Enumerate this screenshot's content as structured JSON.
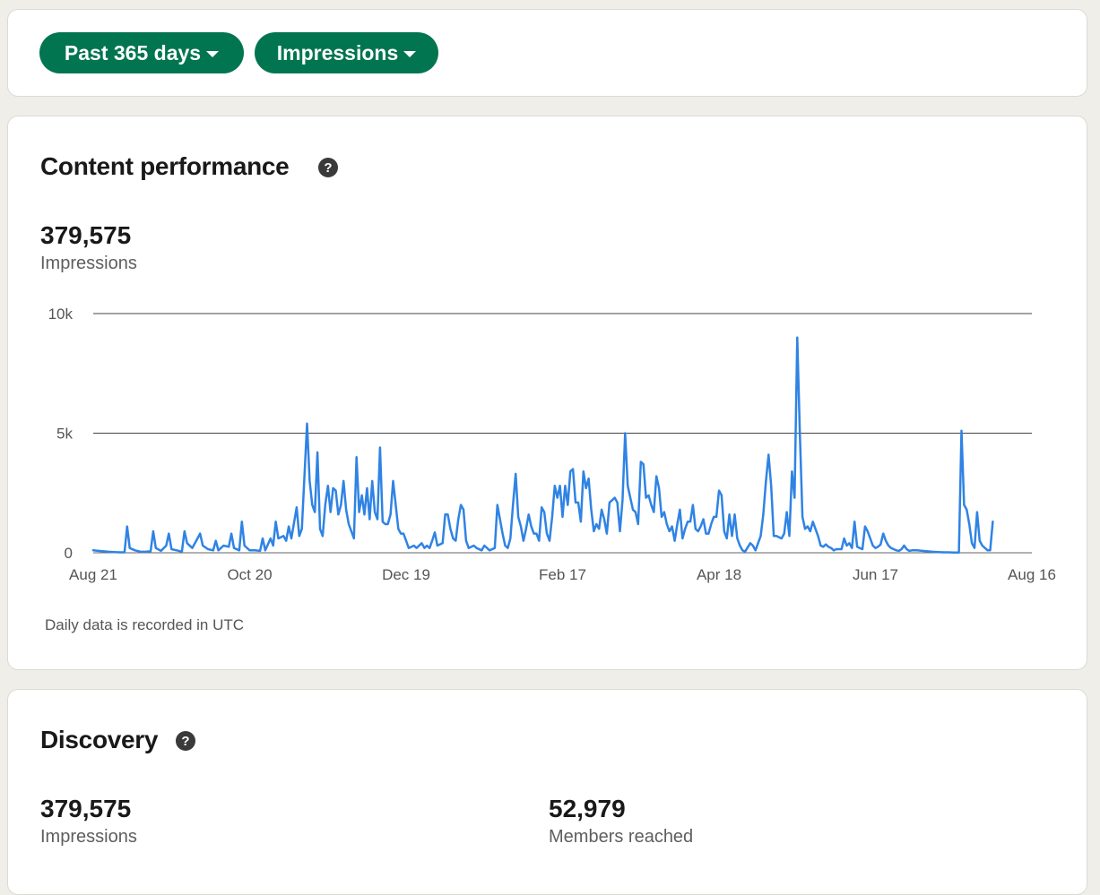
{
  "filters": {
    "range_label": "Past 365 days",
    "metric_label": "Impressions"
  },
  "performance": {
    "title": "Content performance",
    "total": "379,575",
    "total_label": "Impressions",
    "note": "Daily data is recorded in UTC"
  },
  "discovery": {
    "title": "Discovery",
    "impressions": "379,575",
    "impressions_label": "Impressions",
    "members": "52,979",
    "members_label": "Members reached"
  },
  "colors": {
    "accent": "#01754f",
    "line": "#2f83e4",
    "background": "#f0eee9"
  },
  "icons": {
    "help": "question-circle-icon",
    "dropdown": "caret-down-icon"
  },
  "chart_data": {
    "type": "line",
    "title": "",
    "xlabel": "",
    "ylabel": "",
    "ylim": [
      0,
      10000
    ],
    "yticks": [
      {
        "label": "0",
        "value": 0
      },
      {
        "label": "5k",
        "value": 5000
      },
      {
        "label": "10k",
        "value": 10000
      }
    ],
    "xticks": [
      {
        "label": "Aug 21",
        "day": 0
      },
      {
        "label": "Oct 20",
        "day": 60
      },
      {
        "label": "Dec 19",
        "day": 120
      },
      {
        "label": "Feb 17",
        "day": 180
      },
      {
        "label": "Apr 18",
        "day": 240
      },
      {
        "label": "Jun 17",
        "day": 300
      },
      {
        "label": "Aug 16",
        "day": 360
      }
    ],
    "grid": true,
    "legend": "none",
    "series": [
      {
        "points": [
          [
            0,
            100
          ],
          [
            2,
            80
          ],
          [
            4,
            60
          ],
          [
            6,
            40
          ],
          [
            8,
            30
          ],
          [
            10,
            20
          ],
          [
            12,
            20
          ],
          [
            13,
            1100
          ],
          [
            14,
            200
          ],
          [
            16,
            100
          ],
          [
            18,
            50
          ],
          [
            20,
            40
          ],
          [
            22,
            60
          ],
          [
            23,
            900
          ],
          [
            24,
            200
          ],
          [
            26,
            80
          ],
          [
            28,
            300
          ],
          [
            29,
            800
          ],
          [
            30,
            150
          ],
          [
            32,
            100
          ],
          [
            34,
            50
          ],
          [
            35,
            900
          ],
          [
            36,
            400
          ],
          [
            38,
            200
          ],
          [
            40,
            600
          ],
          [
            41,
            800
          ],
          [
            42,
            300
          ],
          [
            44,
            150
          ],
          [
            46,
            100
          ],
          [
            47,
            500
          ],
          [
            48,
            100
          ],
          [
            50,
            300
          ],
          [
            52,
            250
          ],
          [
            53,
            800
          ],
          [
            54,
            200
          ],
          [
            56,
            100
          ],
          [
            57,
            1300
          ],
          [
            58,
            300
          ],
          [
            60,
            100
          ],
          [
            62,
            100
          ],
          [
            64,
            80
          ],
          [
            65,
            600
          ],
          [
            66,
            100
          ],
          [
            68,
            600
          ],
          [
            69,
            300
          ],
          [
            70,
            1300
          ],
          [
            71,
            600
          ],
          [
            73,
            700
          ],
          [
            74,
            500
          ],
          [
            75,
            1100
          ],
          [
            76,
            600
          ],
          [
            78,
            1900
          ],
          [
            79,
            700
          ],
          [
            80,
            1000
          ],
          [
            82,
            5400
          ],
          [
            83,
            3000
          ],
          [
            84,
            2000
          ],
          [
            85,
            1700
          ],
          [
            86,
            4200
          ],
          [
            87,
            1000
          ],
          [
            88,
            700
          ],
          [
            89,
            2000
          ],
          [
            90,
            2800
          ],
          [
            91,
            1700
          ],
          [
            92,
            2700
          ],
          [
            93,
            2600
          ],
          [
            94,
            1600
          ],
          [
            95,
            2000
          ],
          [
            96,
            3000
          ],
          [
            97,
            1800
          ],
          [
            98,
            1200
          ],
          [
            100,
            600
          ],
          [
            101,
            4000
          ],
          [
            102,
            1700
          ],
          [
            103,
            2400
          ],
          [
            104,
            1600
          ],
          [
            105,
            2700
          ],
          [
            106,
            1400
          ],
          [
            107,
            3000
          ],
          [
            108,
            1700
          ],
          [
            109,
            1400
          ],
          [
            110,
            4400
          ],
          [
            111,
            1300
          ],
          [
            112,
            1200
          ],
          [
            113,
            1200
          ],
          [
            114,
            1600
          ],
          [
            115,
            3000
          ],
          [
            116,
            2000
          ],
          [
            117,
            1000
          ],
          [
            118,
            800
          ],
          [
            119,
            800
          ],
          [
            120,
            500
          ],
          [
            121,
            200
          ],
          [
            123,
            300
          ],
          [
            124,
            200
          ],
          [
            126,
            400
          ],
          [
            127,
            200
          ],
          [
            128,
            300
          ],
          [
            129,
            200
          ],
          [
            130,
            500
          ],
          [
            131,
            850
          ],
          [
            132,
            300
          ],
          [
            134,
            400
          ],
          [
            135,
            1600
          ],
          [
            136,
            1600
          ],
          [
            137,
            1000
          ],
          [
            138,
            600
          ],
          [
            139,
            500
          ],
          [
            140,
            1400
          ],
          [
            141,
            2000
          ],
          [
            142,
            1800
          ],
          [
            143,
            500
          ],
          [
            144,
            200
          ],
          [
            146,
            300
          ],
          [
            147,
            200
          ],
          [
            149,
            100
          ],
          [
            150,
            300
          ],
          [
            152,
            100
          ],
          [
            154,
            200
          ],
          [
            155,
            2000
          ],
          [
            156,
            1400
          ],
          [
            157,
            800
          ],
          [
            158,
            300
          ],
          [
            159,
            200
          ],
          [
            160,
            600
          ],
          [
            161,
            2000
          ],
          [
            162,
            3300
          ],
          [
            163,
            1500
          ],
          [
            164,
            1100
          ],
          [
            165,
            500
          ],
          [
            166,
            1000
          ],
          [
            167,
            1600
          ],
          [
            168,
            1100
          ],
          [
            169,
            800
          ],
          [
            170,
            800
          ],
          [
            171,
            500
          ],
          [
            172,
            1900
          ],
          [
            173,
            1700
          ],
          [
            174,
            800
          ],
          [
            175,
            500
          ],
          [
            176,
            1500
          ],
          [
            177,
            2800
          ],
          [
            178,
            2300
          ],
          [
            179,
            2800
          ],
          [
            180,
            1500
          ],
          [
            181,
            2800
          ],
          [
            182,
            2000
          ],
          [
            183,
            3400
          ],
          [
            184,
            3500
          ],
          [
            185,
            2100
          ],
          [
            186,
            2100
          ],
          [
            187,
            1300
          ],
          [
            188,
            3400
          ],
          [
            189,
            2700
          ],
          [
            190,
            3100
          ],
          [
            191,
            1800
          ],
          [
            192,
            900
          ],
          [
            193,
            1200
          ],
          [
            194,
            1000
          ],
          [
            195,
            1800
          ],
          [
            196,
            1400
          ],
          [
            197,
            800
          ],
          [
            198,
            2100
          ],
          [
            199,
            2200
          ],
          [
            200,
            2300
          ],
          [
            201,
            2100
          ],
          [
            202,
            900
          ],
          [
            203,
            2200
          ],
          [
            204,
            5000
          ],
          [
            205,
            2800
          ],
          [
            206,
            2300
          ],
          [
            207,
            1800
          ],
          [
            208,
            1700
          ],
          [
            209,
            1200
          ],
          [
            210,
            3800
          ],
          [
            211,
            3700
          ],
          [
            212,
            2300
          ],
          [
            213,
            2400
          ],
          [
            214,
            2000
          ],
          [
            215,
            1700
          ],
          [
            216,
            3200
          ],
          [
            217,
            2700
          ],
          [
            218,
            1500
          ],
          [
            219,
            1700
          ],
          [
            220,
            1200
          ],
          [
            221,
            900
          ],
          [
            222,
            1100
          ],
          [
            223,
            500
          ],
          [
            224,
            1200
          ],
          [
            225,
            1800
          ],
          [
            226,
            600
          ],
          [
            227,
            1000
          ],
          [
            228,
            1300
          ],
          [
            229,
            1300
          ],
          [
            230,
            2000
          ],
          [
            231,
            1000
          ],
          [
            232,
            900
          ],
          [
            233,
            1100
          ],
          [
            234,
            1400
          ],
          [
            235,
            800
          ],
          [
            236,
            800
          ],
          [
            237,
            1200
          ],
          [
            238,
            1500
          ],
          [
            239,
            1500
          ],
          [
            240,
            2600
          ],
          [
            241,
            2400
          ],
          [
            242,
            900
          ],
          [
            243,
            600
          ],
          [
            244,
            1600
          ],
          [
            245,
            700
          ],
          [
            246,
            1600
          ],
          [
            247,
            600
          ],
          [
            248,
            300
          ],
          [
            249,
            100
          ],
          [
            250,
            50
          ],
          [
            252,
            400
          ],
          [
            253,
            300
          ],
          [
            254,
            100
          ],
          [
            256,
            700
          ],
          [
            257,
            1600
          ],
          [
            258,
            3000
          ],
          [
            259,
            4100
          ],
          [
            260,
            2800
          ],
          [
            261,
            700
          ],
          [
            262,
            700
          ],
          [
            264,
            600
          ],
          [
            265,
            800
          ],
          [
            266,
            1700
          ],
          [
            267,
            700
          ],
          [
            268,
            3400
          ],
          [
            269,
            2300
          ],
          [
            270,
            9000
          ],
          [
            271,
            5000
          ],
          [
            272,
            1500
          ],
          [
            273,
            1000
          ],
          [
            274,
            1100
          ],
          [
            275,
            900
          ],
          [
            276,
            1300
          ],
          [
            277,
            1000
          ],
          [
            278,
            700
          ],
          [
            279,
            300
          ],
          [
            280,
            250
          ],
          [
            281,
            350
          ],
          [
            282,
            250
          ],
          [
            283,
            200
          ],
          [
            284,
            100
          ],
          [
            285,
            150
          ],
          [
            286,
            150
          ],
          [
            287,
            150
          ],
          [
            288,
            600
          ],
          [
            289,
            300
          ],
          [
            290,
            400
          ],
          [
            291,
            200
          ],
          [
            292,
            1300
          ],
          [
            293,
            250
          ],
          [
            294,
            200
          ],
          [
            295,
            150
          ],
          [
            296,
            1100
          ],
          [
            297,
            900
          ],
          [
            298,
            600
          ],
          [
            299,
            300
          ],
          [
            300,
            200
          ],
          [
            301,
            250
          ],
          [
            302,
            350
          ],
          [
            303,
            800
          ],
          [
            304,
            500
          ],
          [
            305,
            300
          ],
          [
            306,
            200
          ],
          [
            307,
            150
          ],
          [
            308,
            100
          ],
          [
            309,
            80
          ],
          [
            310,
            150
          ],
          [
            311,
            300
          ],
          [
            312,
            150
          ],
          [
            313,
            80
          ],
          [
            314,
            100
          ],
          [
            316,
            100
          ],
          [
            318,
            80
          ],
          [
            320,
            60
          ],
          [
            322,
            40
          ],
          [
            324,
            30
          ],
          [
            326,
            20
          ],
          [
            328,
            20
          ],
          [
            330,
            10
          ],
          [
            332,
            10
          ],
          [
            333,
            5100
          ],
          [
            334,
            2000
          ],
          [
            335,
            1800
          ],
          [
            336,
            1200
          ],
          [
            337,
            400
          ],
          [
            338,
            200
          ],
          [
            339,
            1700
          ],
          [
            340,
            500
          ],
          [
            341,
            300
          ],
          [
            342,
            200
          ],
          [
            343,
            100
          ],
          [
            344,
            100
          ],
          [
            345,
            1300
          ]
        ]
      }
    ]
  }
}
